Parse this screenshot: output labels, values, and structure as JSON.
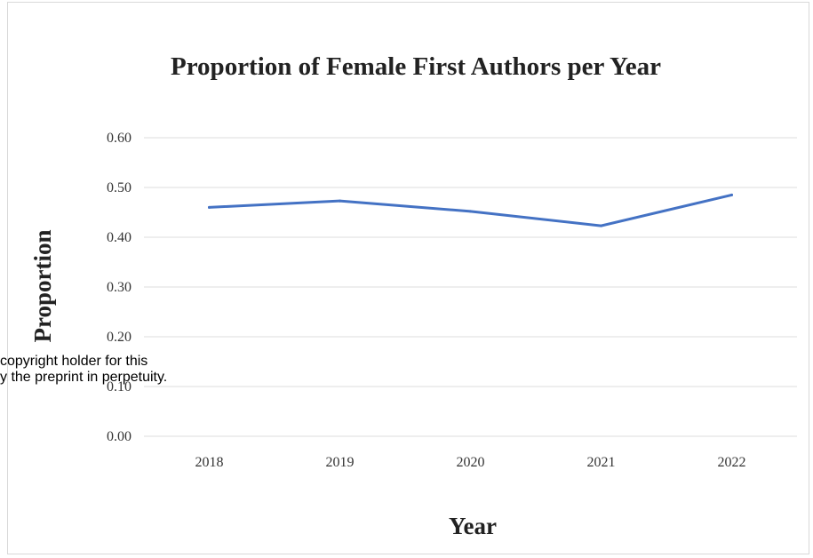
{
  "chart_data": {
    "type": "line",
    "title": "Proportion of Female First Authors per Year",
    "xlabel": "Year",
    "ylabel": "Proportion",
    "categories": [
      "2018",
      "2019",
      "2020",
      "2021",
      "2022"
    ],
    "series": [
      {
        "values": [
          0.46,
          0.473,
          0.452,
          0.423,
          0.485
        ],
        "color": "#4472c4"
      }
    ],
    "yticks": [
      "0.00",
      "0.10",
      "0.20",
      "0.30",
      "0.40",
      "0.50",
      "0.60"
    ],
    "ylim": [
      0,
      0.6
    ],
    "grid": true,
    "legend": "none"
  },
  "overlay": {
    "line1": "copyright holder for this",
    "line2": "y the preprint in perpetuity."
  }
}
